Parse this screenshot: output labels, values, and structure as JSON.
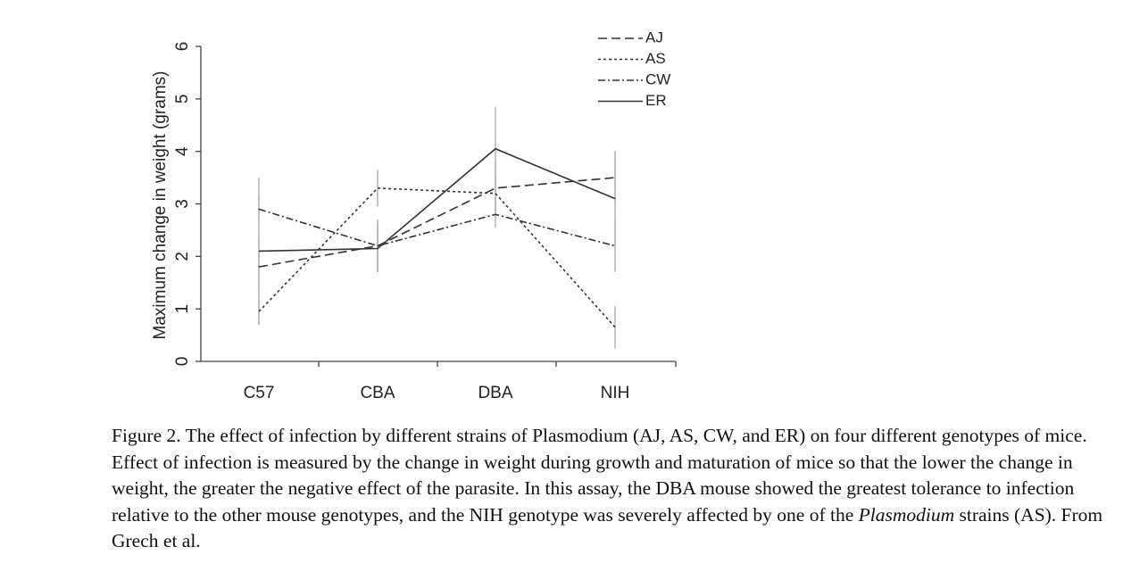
{
  "chart_data": {
    "type": "line",
    "title": "",
    "xlabel": "",
    "ylabel": "Maximum change in weight (grams)",
    "categories": [
      "C57",
      "CBA",
      "DBA",
      "NIH"
    ],
    "ylim": [
      0,
      6
    ],
    "yticks": [
      0,
      1,
      2,
      3,
      4,
      5,
      6
    ],
    "legend_position": "top-right",
    "series": [
      {
        "name": "AJ",
        "style": "dashed",
        "values": [
          1.8,
          2.2,
          3.3,
          3.5
        ],
        "error": [
          0.55,
          0.5,
          0.55,
          0.5
        ]
      },
      {
        "name": "AS",
        "style": "dotted",
        "values": [
          0.95,
          3.3,
          3.2,
          0.65
        ],
        "error": [
          0.25,
          0.35,
          0.35,
          0.4
        ]
      },
      {
        "name": "CW",
        "style": "dashdot",
        "values": [
          2.9,
          2.2,
          2.8,
          2.2
        ],
        "error": [
          0.25,
          0.5,
          0.25,
          0.5
        ]
      },
      {
        "name": "ER",
        "style": "solid",
        "values": [
          2.1,
          2.15,
          4.05,
          3.1
        ],
        "error": [
          1.4,
          0.45,
          0.8,
          0.9
        ]
      }
    ]
  },
  "caption": {
    "part1": "Figure 2. The effect of infection by different strains of Plasmodium (AJ, AS, CW, and ER) on four different genotypes of mice. Effect of infection is measured by the change in weight during growth and maturation of mice so that the lower the change in weight,  the greater the negative effect of the parasite. In this assay, the DBA mouse showed the greatest tolerance to infection relative to the other mouse genotypes, and the NIH genotype was severely affected by one of the ",
    "italic": "Plasmodium",
    "part2": " strains (AS). From Grech et al."
  }
}
